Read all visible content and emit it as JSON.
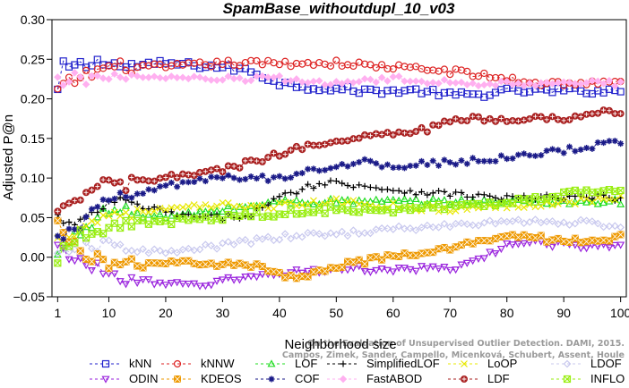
{
  "chart_data": {
    "type": "line",
    "title": "SpamBase_withoutdupl_10_v03",
    "xlabel": "Neighborhood size",
    "ylabel": "Adjusted P@n",
    "xlim": [
      0,
      101
    ],
    "ylim": [
      -0.05,
      0.3
    ],
    "xticks": [
      1,
      10,
      20,
      30,
      40,
      50,
      60,
      70,
      80,
      90,
      100
    ],
    "yticks": [
      -0.05,
      0.0,
      0.05,
      0.1,
      0.15,
      0.2,
      0.25,
      0.3
    ],
    "ytick_labels": [
      "−0.05",
      "0.00",
      "0.05",
      "0.10",
      "0.15",
      "0.20",
      "0.25",
      "0.30"
    ],
    "legend_position": "bottom",
    "grid": false,
    "watermark": [
      "Campos, Zimek, Sander, Campello, Micenková, Schubert, Assent, Houle",
      "On the Evaluation of Unsupervised Outlier Detection. DAMI, 2015."
    ],
    "series": [
      {
        "name": "kNN",
        "color": "#2222cc",
        "marker": "square",
        "dashed": true,
        "knots": [
          [
            1,
            0.21
          ],
          [
            2,
            0.24
          ],
          [
            4,
            0.24
          ],
          [
            8,
            0.245
          ],
          [
            10,
            0.25
          ],
          [
            12,
            0.24
          ],
          [
            20,
            0.245
          ],
          [
            30,
            0.24
          ],
          [
            35,
            0.235
          ],
          [
            40,
            0.22
          ],
          [
            45,
            0.215
          ],
          [
            55,
            0.21
          ],
          [
            65,
            0.21
          ],
          [
            70,
            0.205
          ],
          [
            75,
            0.205
          ],
          [
            80,
            0.21
          ],
          [
            90,
            0.21
          ],
          [
            100,
            0.21
          ]
        ]
      },
      {
        "name": "kNNW",
        "color": "#dd2222",
        "marker": "circle",
        "dashed": true,
        "knots": [
          [
            1,
            0.21
          ],
          [
            3,
            0.22
          ],
          [
            6,
            0.23
          ],
          [
            10,
            0.24
          ],
          [
            20,
            0.24
          ],
          [
            30,
            0.245
          ],
          [
            40,
            0.245
          ],
          [
            50,
            0.245
          ],
          [
            60,
            0.24
          ],
          [
            70,
            0.235
          ],
          [
            80,
            0.225
          ],
          [
            85,
            0.22
          ],
          [
            90,
            0.22
          ],
          [
            100,
            0.22
          ]
        ]
      },
      {
        "name": "LOF",
        "color": "#22dd22",
        "marker": "triangle-up",
        "dashed": true,
        "knots": [
          [
            1,
            0.0
          ],
          [
            3,
            0.02
          ],
          [
            6,
            0.04
          ],
          [
            10,
            0.06
          ],
          [
            15,
            0.055
          ],
          [
            20,
            0.05
          ],
          [
            25,
            0.055
          ],
          [
            30,
            0.06
          ],
          [
            35,
            0.065
          ],
          [
            40,
            0.07
          ],
          [
            45,
            0.07
          ],
          [
            60,
            0.07
          ],
          [
            70,
            0.07
          ],
          [
            80,
            0.07
          ],
          [
            90,
            0.07
          ],
          [
            100,
            0.07
          ]
        ]
      },
      {
        "name": "SimplifiedLOF",
        "color": "#000000",
        "marker": "plus",
        "dashed": true,
        "knots": [
          [
            1,
            0.05
          ],
          [
            3,
            0.04
          ],
          [
            6,
            0.045
          ],
          [
            9,
            0.065
          ],
          [
            12,
            0.07
          ],
          [
            18,
            0.06
          ],
          [
            25,
            0.05
          ],
          [
            30,
            0.05
          ],
          [
            35,
            0.055
          ],
          [
            40,
            0.075
          ],
          [
            45,
            0.09
          ],
          [
            50,
            0.095
          ],
          [
            55,
            0.09
          ],
          [
            60,
            0.085
          ],
          [
            70,
            0.08
          ],
          [
            80,
            0.075
          ],
          [
            90,
            0.075
          ],
          [
            100,
            0.075
          ]
        ]
      },
      {
        "name": "LoOP",
        "color": "#e8e800",
        "marker": "x",
        "dashed": true,
        "knots": [
          [
            1,
            0.02
          ],
          [
            3,
            0.03
          ],
          [
            6,
            0.04
          ],
          [
            10,
            0.055
          ],
          [
            20,
            0.06
          ],
          [
            30,
            0.065
          ],
          [
            40,
            0.065
          ],
          [
            50,
            0.07
          ],
          [
            60,
            0.065
          ],
          [
            70,
            0.06
          ],
          [
            80,
            0.065
          ],
          [
            90,
            0.07
          ],
          [
            100,
            0.075
          ]
        ]
      },
      {
        "name": "LDOF",
        "color": "#c8c8ee",
        "marker": "diamond",
        "dashed": true,
        "knots": [
          [
            1,
            0.0
          ],
          [
            5,
            0.01
          ],
          [
            10,
            0.015
          ],
          [
            15,
            0.01
          ],
          [
            20,
            0.005
          ],
          [
            25,
            0.01
          ],
          [
            30,
            0.015
          ],
          [
            35,
            0.02
          ],
          [
            40,
            0.025
          ],
          [
            50,
            0.03
          ],
          [
            60,
            0.035
          ],
          [
            70,
            0.04
          ],
          [
            80,
            0.045
          ],
          [
            90,
            0.045
          ],
          [
            100,
            0.04
          ]
        ]
      },
      {
        "name": "ODIN",
        "color": "#9922dd",
        "marker": "triangle-down",
        "dashed": true,
        "knots": [
          [
            1,
            0.01
          ],
          [
            3,
            0.005
          ],
          [
            6,
            -0.01
          ],
          [
            10,
            -0.02
          ],
          [
            15,
            -0.03
          ],
          [
            20,
            -0.035
          ],
          [
            25,
            -0.035
          ],
          [
            30,
            -0.03
          ],
          [
            35,
            -0.025
          ],
          [
            40,
            -0.02
          ],
          [
            50,
            -0.015
          ],
          [
            60,
            -0.015
          ],
          [
            70,
            -0.015
          ],
          [
            75,
            -0.005
          ],
          [
            80,
            0.015
          ],
          [
            85,
            0.02
          ],
          [
            90,
            0.015
          ],
          [
            100,
            0.015
          ]
        ]
      },
      {
        "name": "KDEOS",
        "color": "#ee9900",
        "marker": "square-x",
        "dashed": true,
        "knots": [
          [
            1,
            0.04
          ],
          [
            3,
            0.02
          ],
          [
            6,
            0.005
          ],
          [
            9,
            -0.005
          ],
          [
            12,
            -0.01
          ],
          [
            18,
            -0.01
          ],
          [
            25,
            -0.005
          ],
          [
            30,
            -0.01
          ],
          [
            35,
            -0.01
          ],
          [
            40,
            -0.02
          ],
          [
            42,
            -0.025
          ],
          [
            46,
            -0.02
          ],
          [
            50,
            -0.01
          ],
          [
            55,
            -0.005
          ],
          [
            60,
            0.0
          ],
          [
            65,
            0.005
          ],
          [
            70,
            0.01
          ],
          [
            75,
            0.02
          ],
          [
            80,
            0.03
          ],
          [
            85,
            0.025
          ],
          [
            90,
            0.02
          ],
          [
            100,
            0.025
          ]
        ]
      },
      {
        "name": "COF",
        "color": "#1a1a88",
        "marker": "star",
        "dashed": true,
        "knots": [
          [
            1,
            0.02
          ],
          [
            3,
            0.03
          ],
          [
            6,
            0.05
          ],
          [
            10,
            0.07
          ],
          [
            15,
            0.08
          ],
          [
            20,
            0.09
          ],
          [
            25,
            0.095
          ],
          [
            30,
            0.1
          ],
          [
            40,
            0.1
          ],
          [
            45,
            0.11
          ],
          [
            50,
            0.115
          ],
          [
            55,
            0.12
          ],
          [
            60,
            0.115
          ],
          [
            70,
            0.12
          ],
          [
            80,
            0.125
          ],
          [
            90,
            0.135
          ],
          [
            100,
            0.145
          ]
        ]
      },
      {
        "name": "FastABOD",
        "color": "#ffb0f0",
        "marker": "diamond-filled",
        "dashed": true,
        "knots": [
          [
            1,
            0.22
          ],
          [
            3,
            0.225
          ],
          [
            6,
            0.225
          ],
          [
            10,
            0.23
          ],
          [
            20,
            0.225
          ],
          [
            30,
            0.225
          ],
          [
            40,
            0.225
          ],
          [
            50,
            0.22
          ],
          [
            60,
            0.225
          ],
          [
            70,
            0.22
          ],
          [
            80,
            0.22
          ],
          [
            90,
            0.22
          ],
          [
            100,
            0.22
          ]
        ]
      },
      {
        "name": "LDF",
        "color": "#aa2222",
        "marker": "circle-plus",
        "dashed": true,
        "knots": [
          [
            1,
            0.05
          ],
          [
            3,
            0.065
          ],
          [
            6,
            0.08
          ],
          [
            9,
            0.095
          ],
          [
            12,
            0.09
          ],
          [
            15,
            0.095
          ],
          [
            20,
            0.1
          ],
          [
            30,
            0.11
          ],
          [
            40,
            0.13
          ],
          [
            50,
            0.15
          ],
          [
            60,
            0.155
          ],
          [
            65,
            0.16
          ],
          [
            70,
            0.17
          ],
          [
            75,
            0.175
          ],
          [
            85,
            0.175
          ],
          [
            90,
            0.175
          ],
          [
            100,
            0.185
          ]
        ]
      },
      {
        "name": "INFLO",
        "color": "#99ee11",
        "marker": "square-cross",
        "dashed": true,
        "knots": [
          [
            1,
            0.0
          ],
          [
            3,
            0.02
          ],
          [
            6,
            0.03
          ],
          [
            10,
            0.04
          ],
          [
            20,
            0.045
          ],
          [
            30,
            0.05
          ],
          [
            40,
            0.055
          ],
          [
            50,
            0.06
          ],
          [
            60,
            0.06
          ],
          [
            70,
            0.065
          ],
          [
            80,
            0.07
          ],
          [
            90,
            0.08
          ],
          [
            100,
            0.085
          ]
        ]
      }
    ]
  }
}
